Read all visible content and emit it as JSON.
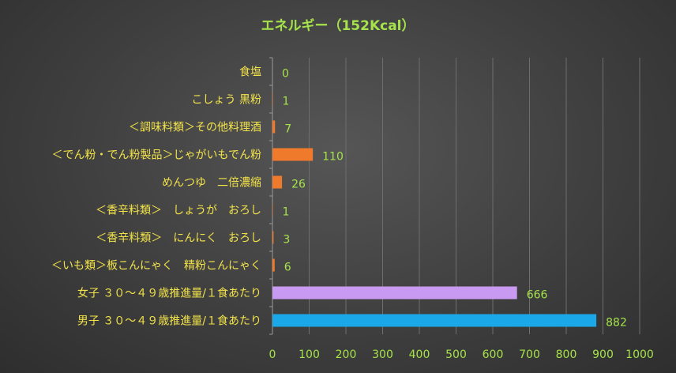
{
  "chart_data": {
    "type": "bar",
    "orientation": "horizontal",
    "title": "エネルギー（152Kcal）",
    "xlabel": "",
    "ylabel": "",
    "xlim": [
      0,
      1000
    ],
    "x_ticks": [
      0,
      100,
      200,
      300,
      400,
      500,
      600,
      700,
      800,
      900,
      1000
    ],
    "grid": true,
    "legend": "none",
    "categories": [
      "食塩",
      "こしょう 黒粉",
      "＜調味料類＞その他料理酒",
      "＜でん粉・でん粉製品＞じゃがいもでん粉",
      "めんつゆ　二倍濃縮",
      "＜香辛料類＞　しょうが　おろし",
      "＜香辛料類＞　にんにく　おろし",
      "＜いも類＞板こんにゃく　精粉こんにゃく",
      "女子 ３０～４９歳推進量/１食あたり",
      "男子 ３０～４９歳推進量/１食あたり"
    ],
    "values": [
      0,
      1,
      7,
      110,
      26,
      1,
      3,
      6,
      666,
      882
    ],
    "bar_colors": [
      "#f07a2c",
      "#f07a2c",
      "#f07a2c",
      "#f07a2c",
      "#f07a2c",
      "#f07a2c",
      "#f07a2c",
      "#f07a2c",
      "#c99af2",
      "#1aa8e8"
    ]
  }
}
